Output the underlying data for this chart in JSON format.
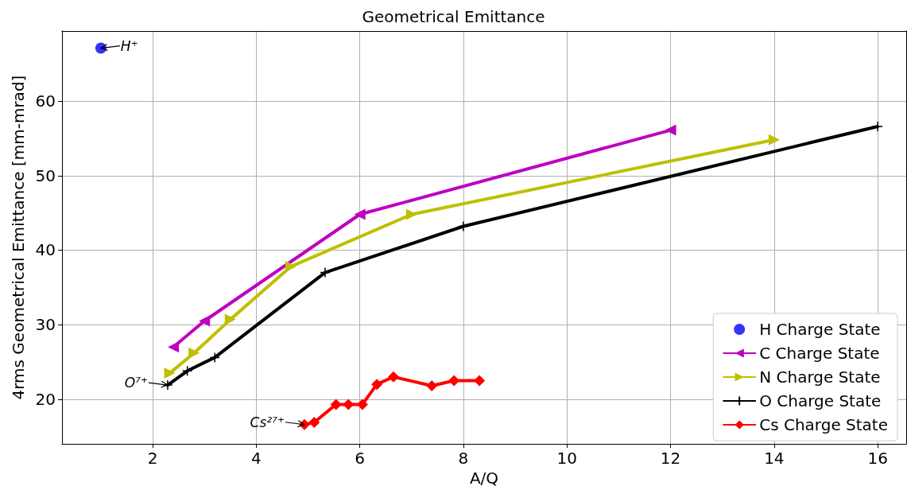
{
  "chart_data": {
    "type": "line",
    "title": "Geometrical Emittance",
    "xlabel": "A/Q",
    "ylabel": "4rms Geometrical Emittance [mm-mrad]",
    "xlim": [
      0.25,
      16.55
    ],
    "xticks": [
      2,
      4,
      6,
      8,
      10,
      12,
      14,
      16
    ],
    "ylim": [
      14,
      69.4
    ],
    "yticks": [
      20,
      30,
      40,
      50,
      60
    ],
    "grid": true,
    "legend": "bottom right",
    "series": [
      {
        "name": "H Charge State",
        "type": "scatter",
        "marker": "circle",
        "color": "#0000ff",
        "x": [
          1
        ],
        "values": [
          67.1
        ]
      },
      {
        "name": "C Charge State",
        "type": "line",
        "marker": "triangle-left",
        "color": "#bf00bf",
        "x": [
          2.4,
          3,
          6,
          12
        ],
        "values": [
          27.0,
          30.5,
          44.8,
          56.1
        ]
      },
      {
        "name": "N Charge State",
        "type": "line",
        "marker": "triangle-right",
        "color": "#bfbf00",
        "x": [
          2.33,
          2.8,
          3.5,
          4.67,
          7,
          14
        ],
        "values": [
          23.5,
          26.2,
          30.7,
          37.8,
          44.8,
          54.8
        ]
      },
      {
        "name": "O Charge State",
        "type": "line",
        "marker": "cross",
        "color": "#000000",
        "x": [
          2.29,
          2.67,
          3.2,
          5.33,
          8,
          16
        ],
        "values": [
          21.9,
          23.8,
          25.6,
          37.0,
          43.2,
          56.6
        ]
      },
      {
        "name": "Cs Charge State",
        "type": "line",
        "marker": "diamond",
        "color": "#ff0000",
        "x": [
          4.93,
          5.12,
          5.54,
          5.78,
          6.05,
          6.33,
          6.65,
          7.39,
          7.82,
          8.31
        ],
        "values": [
          16.6,
          16.9,
          19.3,
          19.3,
          19.3,
          22.0,
          23.0,
          21.8,
          22.5,
          22.5
        ]
      }
    ],
    "annotations": [
      {
        "text": "H⁺",
        "x": 1,
        "y": 67.1
      },
      {
        "text": "O⁷⁺",
        "x": 2.29,
        "y": 21.9
      },
      {
        "text": "Cs²⁷⁺",
        "x": 4.93,
        "y": 16.6
      }
    ]
  }
}
